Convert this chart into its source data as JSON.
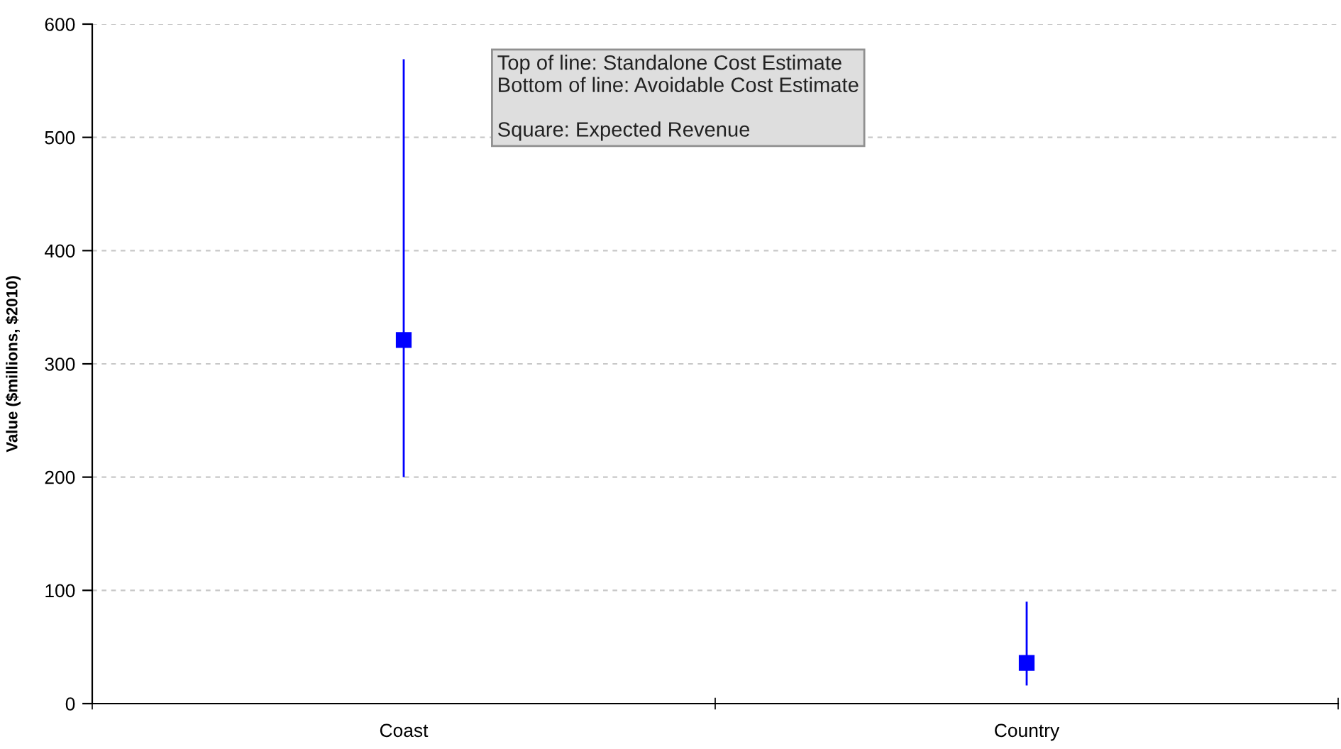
{
  "chart_data": {
    "type": "scatter",
    "ylabel": "Value ($millions, $2010)",
    "categories": [
      "Coast",
      "Country"
    ],
    "series": [
      {
        "color": "#0000ff",
        "values": [
          321,
          36
        ],
        "errors": [
          [
            200,
            569
          ],
          [
            16,
            90
          ]
        ]
      }
    ],
    "marker": "square",
    "ylim": [
      0,
      600
    ],
    "yticks": [
      0,
      100,
      200,
      300,
      400,
      500,
      600
    ],
    "grid": "y",
    "annotations": [
      "Top of line: Standalone Cost Estimate\nBottom of line: Avoidable Cost Estimate\n\nSquare: Expected Revenue"
    ]
  }
}
